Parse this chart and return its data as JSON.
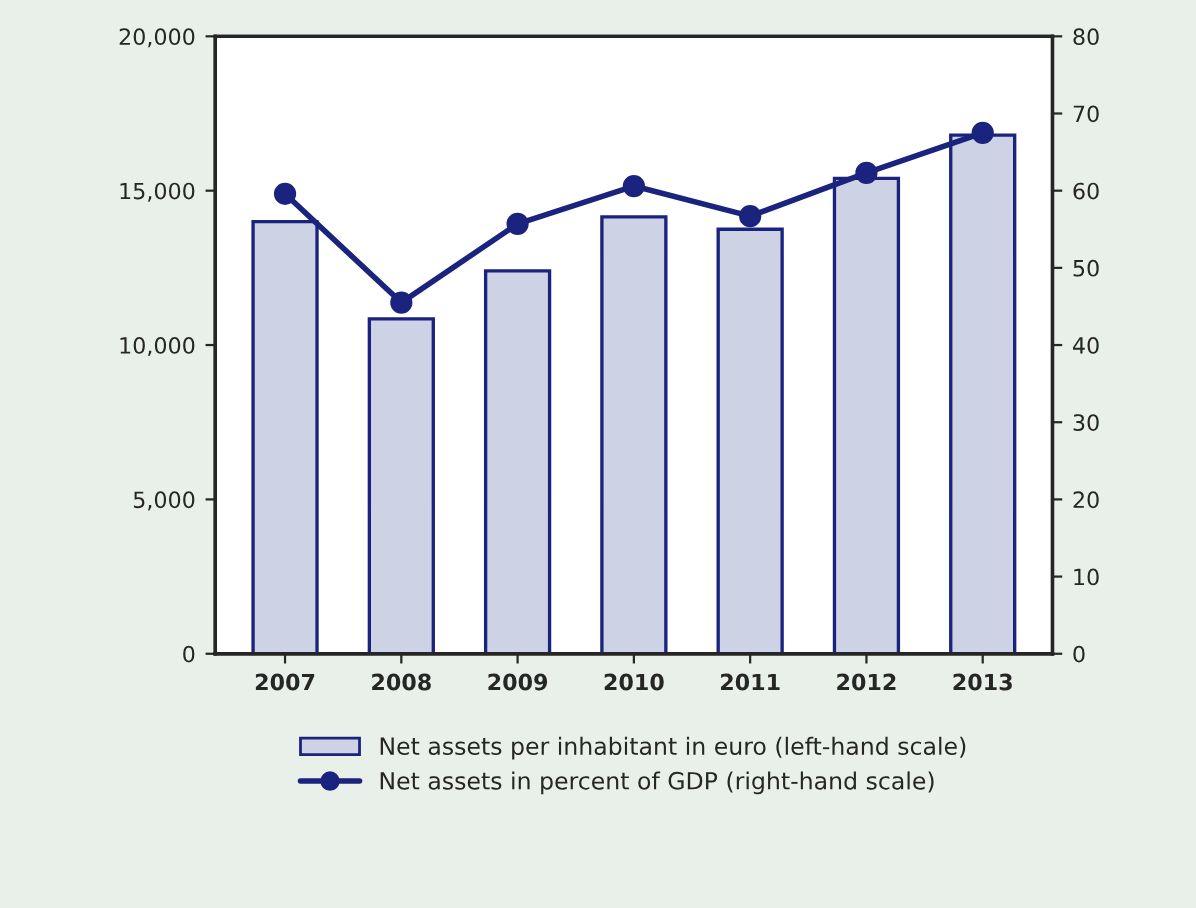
{
  "chart_data": {
    "type": "bar",
    "categories": [
      "2007",
      "2008",
      "2009",
      "2010",
      "2011",
      "2012",
      "2013"
    ],
    "series": [
      {
        "name": "Net assets per inhabitant in euro (left-hand scale)",
        "color": "#cdd2e4",
        "values": [
          14000,
          10850,
          12400,
          14150,
          13750,
          15400,
          16800
        ]
      },
      {
        "name": "Net assets in percent of GDP (right-hand scale)",
        "type": "line",
        "axis": "y2",
        "color": "#1a237e",
        "marker": "circle",
        "values": [
          59.6,
          45.5,
          55.7,
          60.6,
          56.7,
          62.3,
          67.5
        ]
      }
    ],
    "ylim": [
      0,
      20000
    ],
    "yticks": [
      {
        "value": 0,
        "label": "0"
      },
      {
        "value": 5000,
        "label": "5,000"
      },
      {
        "value": 10000,
        "label": "10,000"
      },
      {
        "value": 15000,
        "label": "15,000"
      },
      {
        "value": 20000,
        "label": "20,000"
      }
    ],
    "y2lim": [
      0,
      80
    ],
    "y2ticks": [
      0,
      10,
      20,
      30,
      40,
      50,
      60,
      70,
      80
    ],
    "grid": false,
    "legend": "bottom"
  }
}
